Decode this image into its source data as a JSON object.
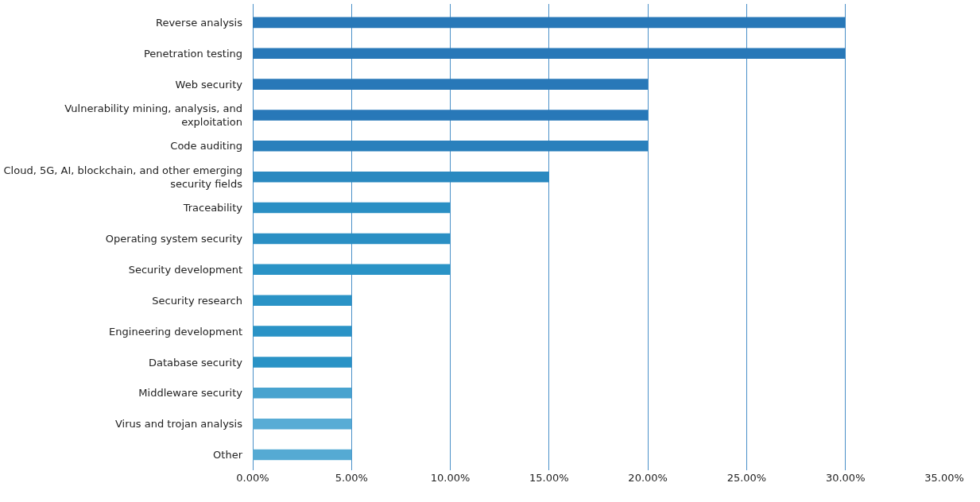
{
  "chart_data": {
    "type": "bar",
    "orientation": "horizontal",
    "categories": [
      "Reverse analysis",
      "Penetration testing",
      "Web security",
      "Vulnerability mining, analysis, and exploitation",
      "Code auditing",
      "Cloud, 5G, AI, blockchain, and other emerging security fields",
      "Traceability",
      "Operating system security",
      "Security development",
      "Security research",
      "Engineering development",
      "Database security",
      "Middleware security",
      "Virus and trojan analysis",
      "Other"
    ],
    "values": [
      30,
      30,
      20,
      20,
      20,
      15,
      10,
      10,
      10,
      5,
      5,
      5,
      5,
      5,
      5
    ],
    "colors": [
      "#2878b8",
      "#2878b8",
      "#2878b8",
      "#2878b8",
      "#2a80bc",
      "#2a89c0",
      "#2a8fc4",
      "#2a8fc4",
      "#2a93c6",
      "#2a93c6",
      "#2a93c6",
      "#2a93c6",
      "#48a3cf",
      "#58acd5",
      "#55aad3"
    ],
    "xlim": [
      0,
      35
    ],
    "xticks": [
      {
        "value": 0,
        "label": "0.00%"
      },
      {
        "value": 5,
        "label": "5.00%"
      },
      {
        "value": 10,
        "label": "10.00%"
      },
      {
        "value": 15,
        "label": "15.00%"
      },
      {
        "value": 20,
        "label": "20.00%"
      },
      {
        "value": 25,
        "label": "25.00%"
      },
      {
        "value": 30,
        "label": "30.00%"
      },
      {
        "value": 35,
        "label": "35.00%"
      }
    ],
    "grid": "x"
  }
}
